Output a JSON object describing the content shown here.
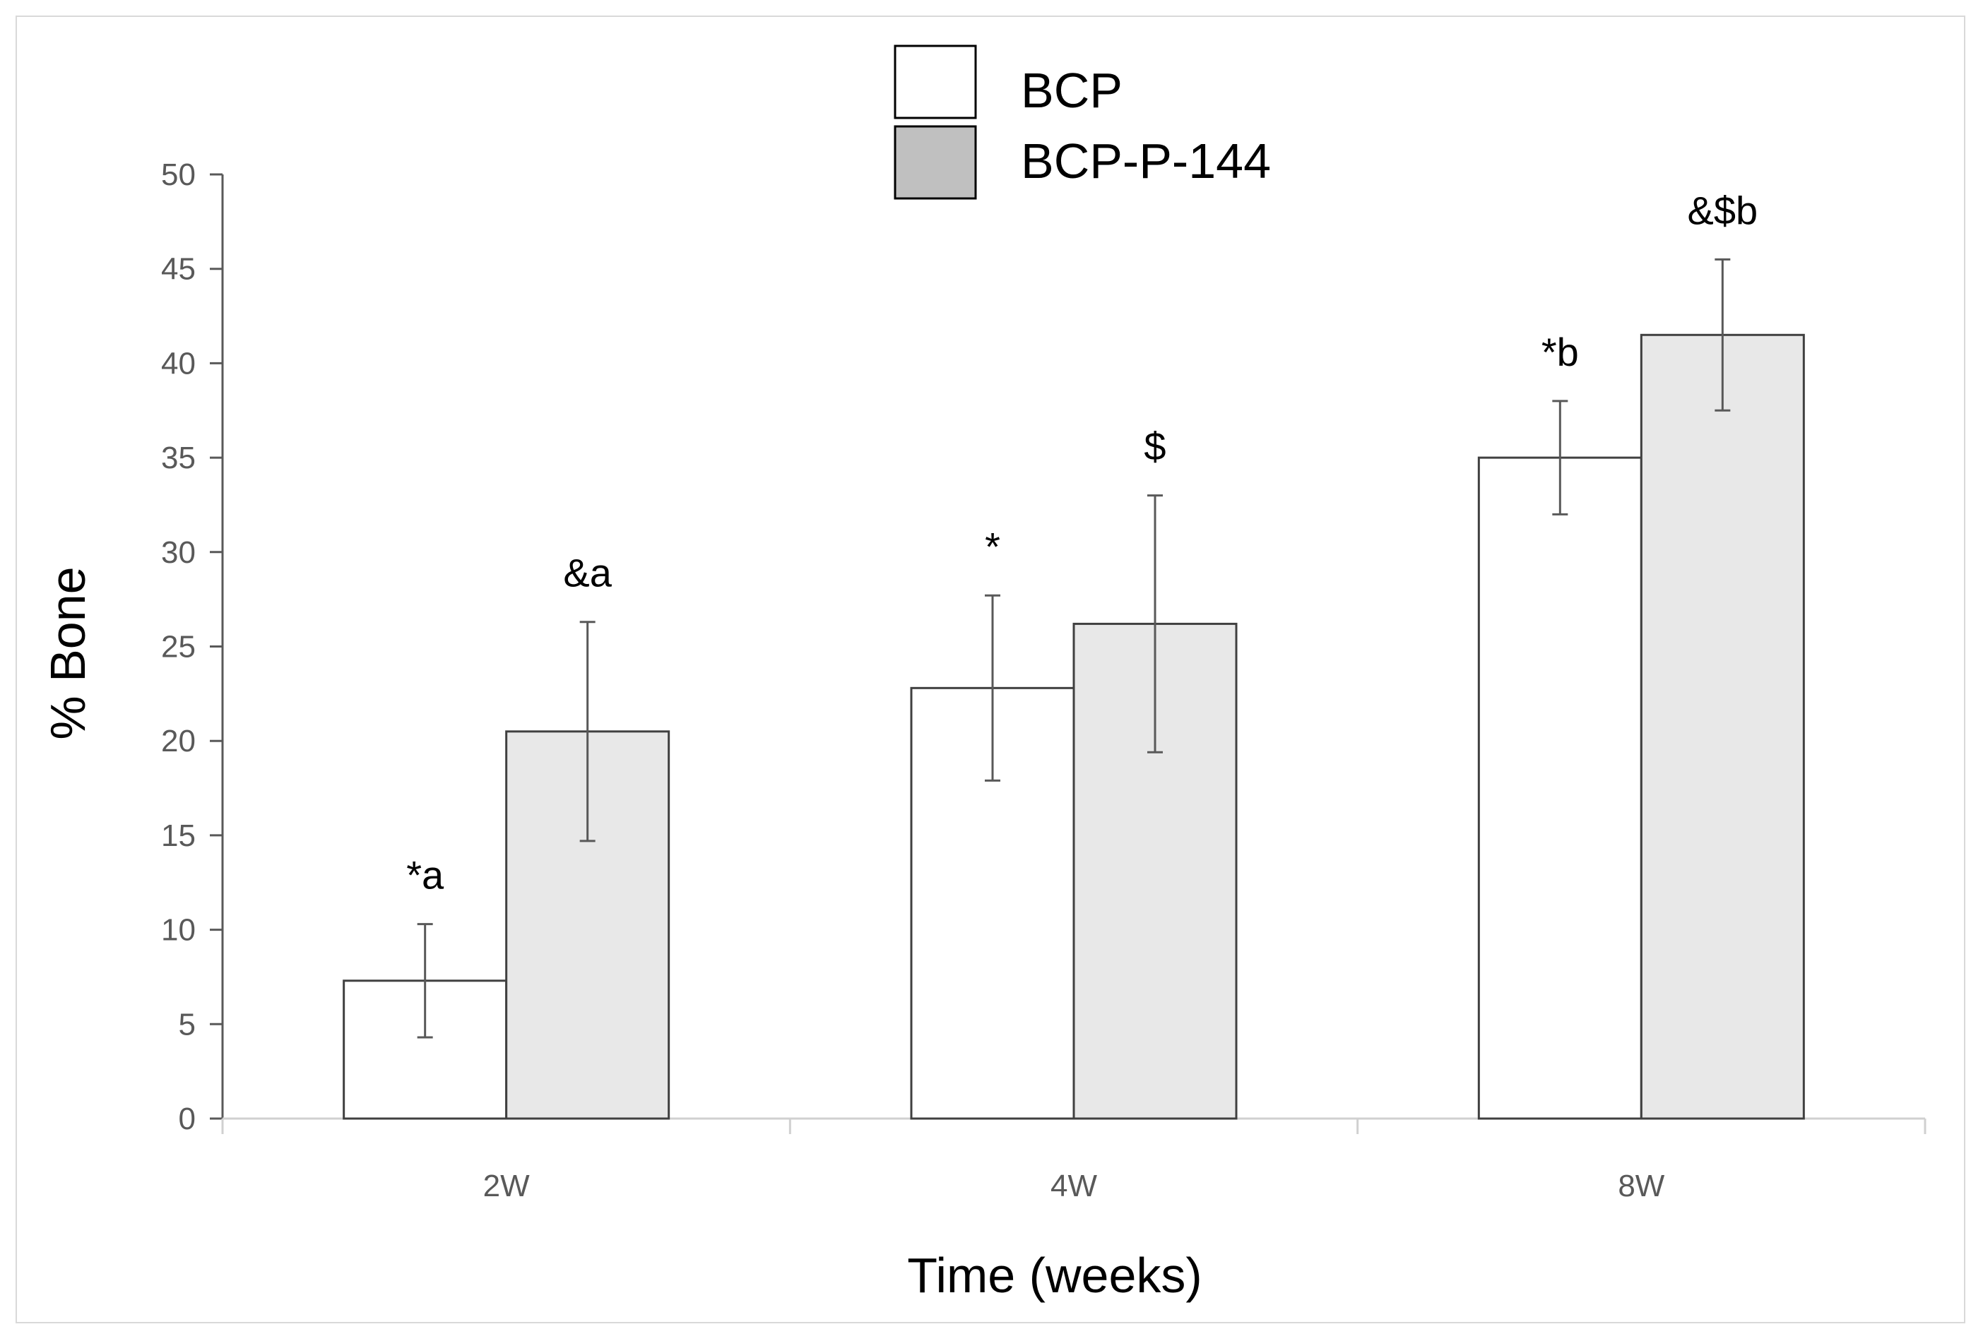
{
  "chart_data": {
    "type": "bar",
    "title": "",
    "xlabel": "Time (weeks)",
    "ylabel": "% Bone",
    "ylim": [
      0,
      50
    ],
    "yticks": [
      0,
      5,
      10,
      15,
      20,
      25,
      30,
      35,
      40,
      45,
      50
    ],
    "categories": [
      "2W",
      "4W",
      "8W"
    ],
    "legend_position": "top-center",
    "grid": false,
    "series": [
      {
        "name": "BCP",
        "color": "#ffffff",
        "values": [
          7.3,
          22.8,
          35.0
        ],
        "errors": [
          3.0,
          4.9,
          3.0
        ],
        "annotations": [
          "*a",
          "*",
          "*b"
        ]
      },
      {
        "name": "BCP-P-144",
        "color": "#e8e8e8",
        "values": [
          20.5,
          26.2,
          41.5
        ],
        "errors": [
          5.8,
          6.8,
          4.0
        ],
        "annotations": [
          "&a",
          "$",
          "&$b"
        ]
      }
    ],
    "legend_swatch_colors": [
      "#ffffff",
      "#c0c0c0"
    ]
  }
}
